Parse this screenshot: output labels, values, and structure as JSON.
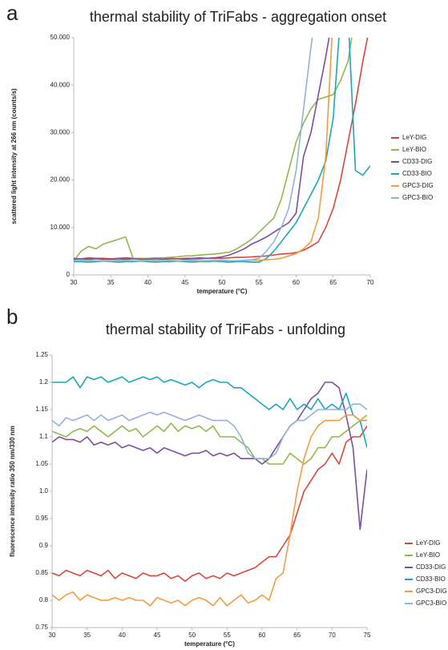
{
  "chart_data": [
    {
      "type": "line",
      "panel_label": "a",
      "title": "thermal stability of TriFabs - aggregation onset",
      "xlabel": "temperature (°C)",
      "ylabel": "scattered light intensity at 266 nm (counts/s)",
      "x": [
        30,
        31,
        32,
        33,
        34,
        35,
        36,
        37,
        38,
        39,
        40,
        41,
        42,
        43,
        44,
        45,
        46,
        47,
        48,
        49,
        50,
        51,
        52,
        53,
        54,
        55,
        56,
        57,
        58,
        59,
        60,
        61,
        62,
        63,
        64,
        65,
        66,
        67,
        68,
        69,
        70
      ],
      "xlim": [
        30,
        70
      ],
      "xticks": [
        30,
        35,
        40,
        45,
        50,
        55,
        60,
        65,
        70
      ],
      "ylim": [
        0,
        50000
      ],
      "yticks": [
        0,
        {
          "value": 10000,
          "label": "10.000"
        },
        {
          "value": 20000,
          "label": "20.000"
        },
        {
          "value": 30000,
          "label": "30.000"
        },
        {
          "value": 40000,
          "label": "40.000"
        },
        {
          "value": 50000,
          "label": "50.000"
        }
      ],
      "legend_position": "right",
      "series": [
        {
          "name": "LeY-DIG",
          "color": "#d9463a",
          "values": [
            3500,
            3400,
            3600,
            3500,
            3500,
            3400,
            3500,
            3600,
            3500,
            3400,
            3500,
            3500,
            3600,
            3500,
            3400,
            3500,
            3500,
            3600,
            3500,
            3500,
            3500,
            3600,
            3700,
            3700,
            3800,
            3900,
            4000,
            4200,
            4400,
            4500,
            4700,
            5200,
            6000,
            7000,
            10000,
            14000,
            20000,
            28000,
            36000,
            45000,
            53000
          ]
        },
        {
          "name": "LeY-BIO",
          "color": "#8dbb4a",
          "values": [
            3000,
            5000,
            6000,
            5500,
            6500,
            7000,
            7500,
            8000,
            3500,
            3500,
            3500,
            3600,
            3600,
            3700,
            3800,
            4000,
            4000,
            4200,
            4300,
            4400,
            4600,
            4800,
            5500,
            6500,
            7500,
            9000,
            10500,
            12000,
            16000,
            22000,
            28000,
            32000,
            35000,
            37000,
            37500,
            38000,
            41000,
            45000,
            55000,
            null,
            null
          ]
        },
        {
          "name": "CD33-DIG",
          "color": "#7b4fa0",
          "values": [
            3300,
            3400,
            3300,
            3400,
            3300,
            3300,
            3400,
            3300,
            3400,
            3300,
            3300,
            3400,
            3300,
            3400,
            3400,
            3300,
            3400,
            3400,
            3500,
            3600,
            3800,
            4200,
            4800,
            5500,
            6500,
            7200,
            8000,
            9000,
            10000,
            11000,
            13000,
            25000,
            30000,
            38000,
            46000,
            55000,
            null,
            null,
            null,
            null,
            null
          ]
        },
        {
          "name": "CD33-BIO",
          "color": "#1aa8b8",
          "values": [
            2800,
            2800,
            2700,
            2800,
            2900,
            2800,
            2700,
            2800,
            2800,
            2900,
            2800,
            2700,
            2800,
            2800,
            2900,
            2800,
            2700,
            2800,
            2800,
            2900,
            2800,
            2700,
            2800,
            2800,
            2700,
            2700,
            3500,
            5000,
            7000,
            9000,
            11000,
            14000,
            17000,
            20000,
            24000,
            33000,
            55000,
            55000,
            22000,
            21000,
            23000
          ]
        },
        {
          "name": "GPC3-DIG",
          "color": "#f79a3e",
          "values": [
            3000,
            3000,
            3100,
            3000,
            3000,
            2900,
            3000,
            3100,
            3000,
            3000,
            3000,
            2900,
            3000,
            3100,
            3000,
            3000,
            3000,
            2900,
            3000,
            3100,
            3000,
            3000,
            3000,
            3000,
            3100,
            3100,
            3200,
            3300,
            3500,
            4000,
            4500,
            5500,
            7000,
            12000,
            25000,
            55000,
            null,
            null,
            null,
            null,
            null
          ]
        },
        {
          "name": "GPC3-BIO",
          "color": "#8fb3dc",
          "values": [
            3000,
            3100,
            3000,
            3000,
            2900,
            3000,
            3100,
            3000,
            3000,
            2900,
            3000,
            3100,
            3000,
            3000,
            2900,
            3000,
            3100,
            3000,
            3000,
            3000,
            3100,
            3000,
            3000,
            3100,
            3200,
            3500,
            5000,
            7000,
            10000,
            14000,
            22000,
            35000,
            48000,
            60000,
            null,
            null,
            null,
            null,
            null,
            null,
            null
          ]
        }
      ]
    },
    {
      "type": "line",
      "panel_label": "b",
      "title": "thermal stability of TriFabs - unfolding",
      "xlabel": "temperature (°C)",
      "ylabel": "fluorescence intensity ratio 350 nm/330 nm",
      "x": [
        30,
        31,
        32,
        33,
        34,
        35,
        36,
        37,
        38,
        39,
        40,
        41,
        42,
        43,
        44,
        45,
        46,
        47,
        48,
        49,
        50,
        51,
        52,
        53,
        54,
        55,
        56,
        57,
        58,
        59,
        60,
        61,
        62,
        63,
        64,
        65,
        66,
        67,
        68,
        69,
        70,
        71,
        72,
        73,
        74,
        75
      ],
      "xlim": [
        30,
        75
      ],
      "xticks": [
        30,
        35,
        40,
        45,
        50,
        55,
        60,
        65,
        70,
        75
      ],
      "ylim": [
        0.75,
        1.25
      ],
      "yticks": [
        0.75,
        0.8,
        0.85,
        0.9,
        0.95,
        {
          "value": 1,
          "label": "1.0"
        },
        1.05,
        1.1,
        1.15,
        1.2,
        1.25
      ],
      "legend_position": "right",
      "series": [
        {
          "name": "LeY-DIG",
          "color": "#d9463a",
          "values": [
            0.85,
            0.845,
            0.855,
            0.85,
            0.845,
            0.855,
            0.85,
            0.845,
            0.855,
            0.84,
            0.85,
            0.845,
            0.84,
            0.85,
            0.845,
            0.845,
            0.85,
            0.84,
            0.845,
            0.835,
            0.845,
            0.85,
            0.84,
            0.845,
            0.84,
            0.85,
            0.845,
            0.85,
            0.855,
            0.86,
            0.87,
            0.88,
            0.88,
            0.9,
            0.92,
            0.96,
            1.0,
            1.02,
            1.04,
            1.05,
            1.07,
            1.05,
            1.09,
            1.1,
            1.1,
            1.12
          ]
        },
        {
          "name": "LeY-BIO",
          "color": "#8dbb4a",
          "values": [
            1.11,
            1.105,
            1.1,
            1.11,
            1.115,
            1.11,
            1.12,
            1.11,
            1.1,
            1.11,
            1.12,
            1.11,
            1.115,
            1.1,
            1.11,
            1.12,
            1.11,
            1.125,
            1.11,
            1.12,
            1.115,
            1.12,
            1.11,
            1.12,
            1.1,
            1.1,
            1.1,
            1.09,
            1.08,
            1.06,
            1.06,
            1.05,
            1.05,
            1.05,
            1.07,
            1.06,
            1.05,
            1.06,
            1.08,
            1.08,
            1.1,
            1.1,
            1.11,
            1.12,
            1.13,
            1.13
          ]
        },
        {
          "name": "CD33-DIG",
          "color": "#7b4fa0",
          "values": [
            1.09,
            1.1,
            1.095,
            1.095,
            1.09,
            1.1,
            1.085,
            1.09,
            1.085,
            1.09,
            1.08,
            1.085,
            1.08,
            1.075,
            1.08,
            1.07,
            1.08,
            1.075,
            1.07,
            1.065,
            1.07,
            1.07,
            1.075,
            1.065,
            1.07,
            1.065,
            1.07,
            1.06,
            1.06,
            1.06,
            1.05,
            1.06,
            1.08,
            1.1,
            1.12,
            1.13,
            1.15,
            1.17,
            1.18,
            1.2,
            1.2,
            1.19,
            1.14,
            1.08,
            0.93,
            1.04
          ]
        },
        {
          "name": "CD33-BIO",
          "color": "#1aa8b8",
          "values": [
            1.2,
            1.2,
            1.2,
            1.21,
            1.19,
            1.21,
            1.205,
            1.21,
            1.2,
            1.205,
            1.21,
            1.2,
            1.205,
            1.21,
            1.205,
            1.21,
            1.2,
            1.205,
            1.2,
            1.195,
            1.2,
            1.19,
            1.2,
            1.205,
            1.2,
            1.2,
            1.19,
            1.19,
            1.18,
            1.17,
            1.16,
            1.15,
            1.16,
            1.15,
            1.17,
            1.15,
            1.16,
            1.15,
            1.17,
            1.15,
            1.16,
            1.15,
            1.18,
            1.14,
            1.13,
            1.08
          ]
        },
        {
          "name": "GPC3-DIG",
          "color": "#f79a3e",
          "values": [
            0.81,
            0.8,
            0.81,
            0.815,
            0.8,
            0.81,
            0.805,
            0.8,
            0.8,
            0.805,
            0.8,
            0.805,
            0.8,
            0.8,
            0.79,
            0.805,
            0.8,
            0.795,
            0.8,
            0.79,
            0.8,
            0.805,
            0.8,
            0.79,
            0.805,
            0.79,
            0.8,
            0.81,
            0.795,
            0.8,
            0.81,
            0.8,
            0.84,
            0.85,
            0.92,
            1.0,
            1.06,
            1.1,
            1.12,
            1.13,
            1.13,
            1.13,
            1.14,
            1.14,
            1.13,
            1.14
          ]
        },
        {
          "name": "GPC3-BIO",
          "color": "#8fb3dc",
          "values": [
            1.13,
            1.12,
            1.135,
            1.13,
            1.135,
            1.14,
            1.13,
            1.14,
            1.13,
            1.135,
            1.14,
            1.13,
            1.135,
            1.14,
            1.145,
            1.14,
            1.145,
            1.14,
            1.135,
            1.13,
            1.135,
            1.14,
            1.135,
            1.13,
            1.13,
            1.13,
            1.12,
            1.1,
            1.07,
            1.06,
            1.06,
            1.06,
            1.07,
            1.1,
            1.12,
            1.13,
            1.13,
            1.14,
            1.15,
            1.15,
            1.15,
            1.15,
            1.15,
            1.16,
            1.16,
            1.15
          ]
        }
      ]
    }
  ]
}
